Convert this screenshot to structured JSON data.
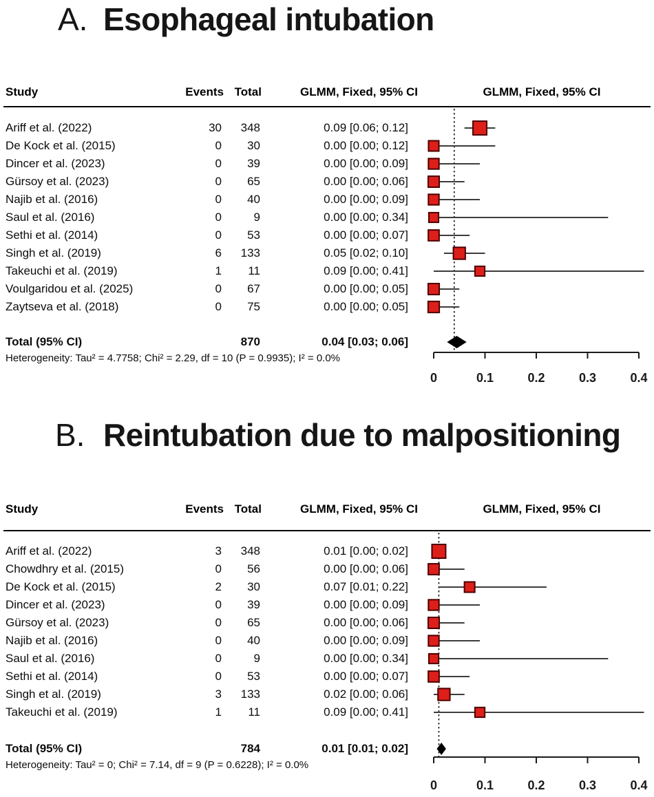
{
  "chart_data": [
    {
      "type": "scatter",
      "subtype": "forest-plot",
      "panel_label": "A.",
      "title": "Esophageal intubation",
      "columns": {
        "study": "Study",
        "events": "Events",
        "total": "Total",
        "ci_text": "GLMM, Fixed, 95% CI",
        "plot": "GLMM, Fixed, 95% CI"
      },
      "studies": [
        {
          "study": "Ariff et al. (2022)",
          "events": 30,
          "total": 348,
          "text": "0.09 [0.06; 0.12]",
          "est": 0.09,
          "lo": 0.06,
          "hi": 0.12
        },
        {
          "study": "De Kock et al. (2015)",
          "events": 0,
          "total": 30,
          "text": "0.00 [0.00; 0.12]",
          "est": 0.0,
          "lo": 0.0,
          "hi": 0.12
        },
        {
          "study": "Dincer et al. (2023)",
          "events": 0,
          "total": 39,
          "text": "0.00 [0.00; 0.09]",
          "est": 0.0,
          "lo": 0.0,
          "hi": 0.09
        },
        {
          "study": "Gürsoy et al. (2023)",
          "events": 0,
          "total": 65,
          "text": "0.00 [0.00; 0.06]",
          "est": 0.0,
          "lo": 0.0,
          "hi": 0.06
        },
        {
          "study": "Najib et al. (2016)",
          "events": 0,
          "total": 40,
          "text": "0.00 [0.00; 0.09]",
          "est": 0.0,
          "lo": 0.0,
          "hi": 0.09
        },
        {
          "study": "Saul et al. (2016)",
          "events": 0,
          "total": 9,
          "text": "0.00 [0.00; 0.34]",
          "est": 0.0,
          "lo": 0.0,
          "hi": 0.34
        },
        {
          "study": "Sethi et al. (2014)",
          "events": 0,
          "total": 53,
          "text": "0.00 [0.00; 0.07]",
          "est": 0.0,
          "lo": 0.0,
          "hi": 0.07
        },
        {
          "study": "Singh et al. (2019)",
          "events": 6,
          "total": 133,
          "text": "0.05 [0.02; 0.10]",
          "est": 0.05,
          "lo": 0.02,
          "hi": 0.1
        },
        {
          "study": "Takeuchi et al. (2019)",
          "events": 1,
          "total": 11,
          "text": "0.09 [0.00; 0.41]",
          "est": 0.09,
          "lo": 0.0,
          "hi": 0.41
        },
        {
          "study": "Voulgaridou et al. (2025)",
          "events": 0,
          "total": 67,
          "text": "0.00 [0.00; 0.05]",
          "est": 0.0,
          "lo": 0.0,
          "hi": 0.05
        },
        {
          "study": "Zaytseva et al. (2018)",
          "events": 0,
          "total": 75,
          "text": "0.00 [0.00; 0.05]",
          "est": 0.0,
          "lo": 0.0,
          "hi": 0.05
        }
      ],
      "total_row": {
        "label": "Total (95% CI)",
        "total": 870,
        "text": "0.04 [0.03; 0.06]",
        "est": 0.04,
        "lo": 0.03,
        "hi": 0.06
      },
      "heterogeneity": "Heterogeneity: Tau² = 4.7758; Chi² = 2.29, df = 10 (P = 0.9935); I² = 0.0%",
      "xlim": [
        0,
        0.4
      ],
      "x_ticks": [
        0,
        0.1,
        0.2,
        0.3,
        0.4
      ],
      "pooled_line_x": 0.04
    },
    {
      "type": "scatter",
      "subtype": "forest-plot",
      "panel_label": "B.",
      "title": "Reintubation due to malpositioning",
      "columns": {
        "study": "Study",
        "events": "Events",
        "total": "Total",
        "ci_text": "GLMM, Fixed, 95% CI",
        "plot": "GLMM, Fixed, 95% CI"
      },
      "studies": [
        {
          "study": "Ariff et al. (2022)",
          "events": 3,
          "total": 348,
          "text": "0.01 [0.00; 0.02]",
          "est": 0.01,
          "lo": 0.0,
          "hi": 0.02
        },
        {
          "study": "Chowdhry et al. (2015)",
          "events": 0,
          "total": 56,
          "text": "0.00 [0.00; 0.06]",
          "est": 0.0,
          "lo": 0.0,
          "hi": 0.06
        },
        {
          "study": "De Kock et al. (2015)",
          "events": 2,
          "total": 30,
          "text": "0.07 [0.01; 0.22]",
          "est": 0.07,
          "lo": 0.01,
          "hi": 0.22
        },
        {
          "study": "Dincer et al. (2023)",
          "events": 0,
          "total": 39,
          "text": "0.00 [0.00; 0.09]",
          "est": 0.0,
          "lo": 0.0,
          "hi": 0.09
        },
        {
          "study": "Gürsoy et al. (2023)",
          "events": 0,
          "total": 65,
          "text": "0.00 [0.00; 0.06]",
          "est": 0.0,
          "lo": 0.0,
          "hi": 0.06
        },
        {
          "study": "Najib et al. (2016)",
          "events": 0,
          "total": 40,
          "text": "0.00 [0.00; 0.09]",
          "est": 0.0,
          "lo": 0.0,
          "hi": 0.09
        },
        {
          "study": "Saul et al. (2016)",
          "events": 0,
          "total": 9,
          "text": "0.00 [0.00; 0.34]",
          "est": 0.0,
          "lo": 0.0,
          "hi": 0.34
        },
        {
          "study": "Sethi et al. (2014)",
          "events": 0,
          "total": 53,
          "text": "0.00 [0.00; 0.07]",
          "est": 0.0,
          "lo": 0.0,
          "hi": 0.07
        },
        {
          "study": "Singh et al. (2019)",
          "events": 3,
          "total": 133,
          "text": "0.02 [0.00; 0.06]",
          "est": 0.02,
          "lo": 0.0,
          "hi": 0.06
        },
        {
          "study": "Takeuchi et al. (2019)",
          "events": 1,
          "total": 11,
          "text": "0.09 [0.00; 0.41]",
          "est": 0.09,
          "lo": 0.0,
          "hi": 0.41
        }
      ],
      "total_row": {
        "label": "Total (95% CI)",
        "total": 784,
        "text": "0.01 [0.01; 0.02]",
        "est": 0.01,
        "lo": 0.01,
        "hi": 0.02
      },
      "heterogeneity": "Heterogeneity: Tau² = 0; Chi² = 7.14, df = 9 (P = 0.6228); I² = 0.0%",
      "xlim": [
        0,
        0.4
      ],
      "x_ticks": [
        0,
        0.1,
        0.2,
        0.3,
        0.4
      ],
      "pooled_line_x": 0.01
    }
  ],
  "colors": {
    "square_fill": "#dd1f1a",
    "square_border": "#4d0000",
    "ci_line": "#3c3c3c",
    "diamond": "#000000",
    "pooled_line": "#111111",
    "axis": "#1a1a1a",
    "text": "#0c0c0c"
  }
}
